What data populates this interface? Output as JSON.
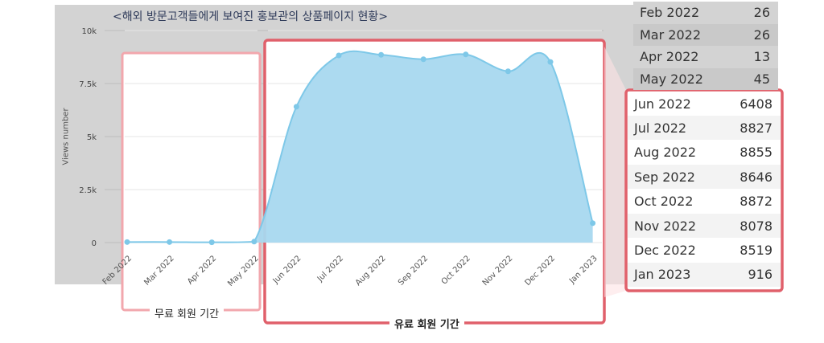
{
  "chart_data": {
    "type": "area",
    "title": "<해외 방문고객들에게 보여진 홍보관의 상품페이지 현황>",
    "ylabel": "Views number",
    "xlabel": "",
    "ylim": [
      0,
      10000
    ],
    "yticks": [
      "0",
      "2.5k",
      "5k",
      "7.5k",
      "10k"
    ],
    "categories": [
      "Feb 2022",
      "Mar 2022",
      "Apr 2022",
      "May 2022",
      "Jun 2022",
      "Jul 2022",
      "Aug 2022",
      "Sep 2022",
      "Oct 2022",
      "Nov 2022",
      "Dec 2022",
      "Jan 2023"
    ],
    "values": [
      26,
      26,
      13,
      45,
      6408,
      8827,
      8855,
      8646,
      8872,
      8078,
      8519,
      916
    ],
    "color": "#a8d8ef",
    "line_color": "#7ec8e8"
  },
  "table_top": [
    {
      "month": "Feb 2022",
      "value": "26"
    },
    {
      "month": "Mar 2022",
      "value": "26"
    },
    {
      "month": "Apr 2022",
      "value": "13"
    },
    {
      "month": "May 2022",
      "value": "45"
    }
  ],
  "table_bottom": [
    {
      "month": "Jun 2022",
      "value": "6408"
    },
    {
      "month": "Jul 2022",
      "value": "8827"
    },
    {
      "month": "Aug 2022",
      "value": "8855"
    },
    {
      "month": "Sep 2022",
      "value": "8646"
    },
    {
      "month": "Oct 2022",
      "value": "8872"
    },
    {
      "month": "Nov 2022",
      "value": "8078"
    },
    {
      "month": "Dec 2022",
      "value": "8519"
    },
    {
      "month": "Jan 2023",
      "value": "916"
    }
  ],
  "labels": {
    "free_period": "무료 회원 기간",
    "paid_period": "유료 회원 기간"
  },
  "colors": {
    "free_box": "#f2a7ad",
    "paid_box": "#e0606b"
  }
}
